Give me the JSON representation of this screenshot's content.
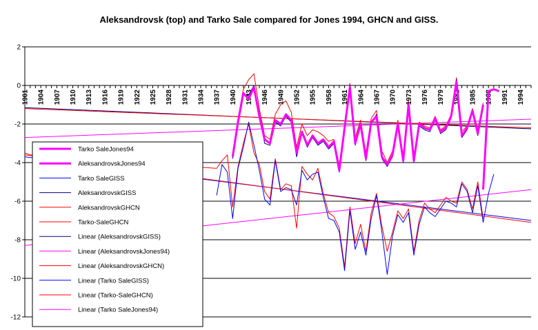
{
  "chart_data": {
    "type": "line",
    "title": "Aleksandrovsk (top) and Tarko Sale compared for Jones 1994, GHCN and GISS.",
    "xlabel": "",
    "ylabel": "",
    "xlim": [
      1901,
      1996
    ],
    "ylim": [
      -12,
      2
    ],
    "yticks": [
      2,
      0,
      -2,
      -4,
      -6,
      -8,
      -10,
      -12
    ],
    "xticks": [
      1901,
      1904,
      1907,
      1910,
      1913,
      1916,
      1919,
      1922,
      1925,
      1928,
      1931,
      1934,
      1937,
      1940,
      1943,
      1946,
      1949,
      1952,
      1955,
      1958,
      1961,
      1964,
      1967,
      1970,
      1973,
      1976,
      1979,
      1982,
      1985,
      1988,
      1991,
      1994
    ],
    "grid": "horizontal",
    "legend_position": "bottom-left",
    "series": [
      {
        "name": "Tarko SaleJones94",
        "color": "#ff00ff",
        "width": 3,
        "x": [
          1987,
          1988,
          1989,
          1990
        ],
        "y": [
          -5.4,
          -0.3,
          -0.2,
          -0.3
        ]
      },
      {
        "name": "AleksandrovskJones94",
        "color": "#ff00ff",
        "width": 3,
        "x": [
          1940,
          1941,
          1942,
          1943,
          1944,
          1945,
          1946,
          1947,
          1948,
          1949,
          1950,
          1951,
          1952,
          1953,
          1954,
          1955,
          1956,
          1957,
          1958,
          1959,
          1960,
          1961,
          1962,
          1963,
          1964,
          1965,
          1966,
          1967,
          1968,
          1969,
          1970,
          1971,
          1972,
          1973,
          1974,
          1975,
          1976,
          1977,
          1978,
          1979,
          1980,
          1981,
          1982,
          1983,
          1984,
          1985,
          1986,
          1987
        ],
        "y": [
          -3.7,
          -1.9,
          -0.4,
          -0.7,
          -0.1,
          -1.6,
          -2.8,
          -3.0,
          -1.8,
          -2.0,
          -1.5,
          -1.8,
          -3.5,
          -2.4,
          -3.1,
          -2.6,
          -3.0,
          -2.8,
          -3.2,
          -2.9,
          -4.4,
          -2.2,
          -0.1,
          -3.0,
          -2.0,
          -3.8,
          -1.9,
          -1.6,
          -3.7,
          -4.1,
          -3.6,
          -2.0,
          -3.9,
          -1.0,
          -3.9,
          -2.0,
          -2.2,
          -2.3,
          -1.7,
          -2.4,
          -2.2,
          -1.6,
          0.2,
          -2.6,
          -2.2,
          -1.3,
          -2.5,
          -1.0
        ]
      },
      {
        "name": "Tarko SaleGISS",
        "color": "#0000ff",
        "width": 1,
        "x": [
          1937,
          1938,
          1939,
          1940,
          1941,
          1942,
          1943,
          1944,
          1945,
          1946,
          1947,
          1948,
          1949,
          1950,
          1951,
          1952,
          1953,
          1954,
          1955,
          1956,
          1957,
          1958,
          1959,
          1960,
          1961,
          1962,
          1963,
          1964,
          1965,
          1966,
          1967,
          1968,
          1969,
          1970,
          1971,
          1972,
          1973,
          1974,
          1975,
          1976,
          1977,
          1978,
          1979,
          1980,
          1981,
          1982,
          1983,
          1984,
          1985,
          1986,
          1987,
          1988,
          1989
        ],
        "y": [
          -5.7,
          -4.1,
          -4.5,
          -6.9,
          -4.3,
          -3.2,
          -1.9,
          -3.1,
          -4.4,
          -5.9,
          -6.2,
          -3.9,
          -5.5,
          -5.3,
          -5.4,
          -6.2,
          -4.4,
          -4.9,
          -4.6,
          -4.5,
          -5.8,
          -6.9,
          -7.0,
          -7.6,
          -9.6,
          -6.5,
          -8.5,
          -7.6,
          -8.8,
          -6.9,
          -5.7,
          -7.6,
          -9.8,
          -7.8,
          -6.7,
          -7.1,
          -6.6,
          -8.8,
          -7.2,
          -6.3,
          -6.6,
          -6.8,
          -6.4,
          -6.0,
          -6.1,
          -6.3,
          -5.1,
          -5.5,
          -6.6,
          -5.2,
          -7.1,
          -5.6,
          -4.6
        ]
      },
      {
        "name": "AleksandrovskGISS",
        "color": "#000080",
        "width": 1,
        "x": [
          1940,
          1941,
          1942,
          1943,
          1944,
          1945,
          1946,
          1947,
          1948,
          1949,
          1950,
          1951,
          1952,
          1953,
          1954,
          1955,
          1956,
          1957,
          1958,
          1959,
          1960,
          1961,
          1962,
          1963,
          1964,
          1965,
          1966,
          1967,
          1968,
          1969,
          1970,
          1971,
          1972,
          1973,
          1974,
          1975,
          1976,
          1977,
          1978,
          1979,
          1980,
          1981,
          1982,
          1983,
          1984,
          1985,
          1986,
          1987
        ],
        "y": [
          -3.8,
          -2.0,
          -0.5,
          -0.5,
          0.0,
          -1.6,
          -3.0,
          -3.1,
          -1.9,
          -2.1,
          -1.6,
          -1.9,
          -3.7,
          -2.5,
          -3.2,
          -2.7,
          -3.1,
          -2.9,
          -3.3,
          -3.0,
          -4.5,
          -2.3,
          0.0,
          -3.1,
          -2.1,
          -3.9,
          -2.0,
          -1.5,
          -3.8,
          -4.2,
          -3.7,
          -2.1,
          -4.0,
          -0.9,
          -4.0,
          -2.1,
          -2.3,
          -2.4,
          -1.8,
          -2.5,
          -2.3,
          -1.7,
          0.3,
          -2.7,
          -2.3,
          -1.4,
          -2.6,
          -1.1
        ]
      },
      {
        "name": "AleksandrovskGHCN",
        "color": "#ff0000",
        "width": 1,
        "x": [
          1940,
          1941,
          1942,
          1943,
          1944,
          1945,
          1946,
          1947,
          1948,
          1949,
          1950,
          1951,
          1952,
          1953,
          1954,
          1955,
          1956,
          1957,
          1958,
          1959,
          1960,
          1961,
          1962,
          1963,
          1964,
          1965,
          1966,
          1967,
          1968,
          1969,
          1970,
          1971,
          1972,
          1973,
          1974,
          1975,
          1976,
          1977,
          1978,
          1979,
          1980,
          1981,
          1982,
          1983,
          1984,
          1985,
          1986,
          1987
        ],
        "y": [
          -3.5,
          -1.7,
          -0.2,
          0.3,
          0.6,
          -1.2,
          -2.6,
          -2.8,
          -1.5,
          -1.0,
          -0.8,
          -1.4,
          -3.2,
          -2.0,
          -2.6,
          -2.3,
          -2.4,
          -2.6,
          -2.9,
          -2.8,
          -4.1,
          -2.0,
          0.1,
          -2.7,
          -1.8,
          -3.5,
          -1.7,
          -1.3,
          -3.4,
          -4.0,
          -3.4,
          -1.8,
          -3.7,
          -0.8,
          -3.7,
          -1.9,
          -2.1,
          -2.2,
          -1.6,
          -2.3,
          -2.1,
          -1.5,
          0.4,
          -2.4,
          -2.1,
          -1.2,
          -2.3,
          -0.9
        ]
      },
      {
        "name": "Tarko-SaleGHCN",
        "color": "#ff0000",
        "width": 1,
        "x": [
          1901,
          1902,
          1937,
          1938,
          1939,
          1940,
          1941,
          1942,
          1943,
          1944,
          1945,
          1946,
          1947,
          1948,
          1949,
          1950,
          1951,
          1952,
          1953,
          1954,
          1955,
          1956,
          1957,
          1958,
          1959,
          1960,
          1961,
          1962,
          1963,
          1964,
          1965,
          1966,
          1967,
          1968,
          1969,
          1970,
          1971,
          1972,
          1973,
          1974,
          1975,
          1976,
          1977,
          1978,
          1979,
          1980,
          1981,
          1982,
          1983,
          1984,
          1985,
          1986,
          1987
        ],
        "y": [
          -3.5,
          -3.6,
          -4.3,
          -3.9,
          -3.6,
          -6.3,
          -4.2,
          -3.0,
          -2.0,
          -3.5,
          -4.1,
          -5.5,
          -5.9,
          -3.8,
          -5.4,
          -5.1,
          -5.2,
          -7.4,
          -4.2,
          -4.6,
          -4.9,
          -4.3,
          -5.6,
          -6.6,
          -6.8,
          -7.4,
          -9.4,
          -6.3,
          -8.2,
          -7.2,
          -8.6,
          -6.6,
          -5.6,
          -7.3,
          -8.6,
          -7.6,
          -6.5,
          -6.9,
          -6.4,
          -8.6,
          -7.0,
          -6.1,
          -6.4,
          -6.6,
          -6.2,
          -5.8,
          -6.0,
          -6.1,
          -5.0,
          -5.4,
          -6.4,
          -5.0,
          -6.9
        ]
      },
      {
        "name": "Linear (AleksandrovskGISS)",
        "color": "#000080",
        "width": 1,
        "x": [
          1901,
          1996
        ],
        "y": [
          -1.15,
          -2.25
        ]
      },
      {
        "name": "Linear (AleksandrovskJones94)",
        "color": "#ff00ff",
        "width": 1,
        "x": [
          1901,
          1996
        ],
        "y": [
          -2.7,
          -1.75
        ]
      },
      {
        "name": "Linear (AleksandrovskGHCN)",
        "color": "#ff0000",
        "width": 1,
        "x": [
          1901,
          1996
        ],
        "y": [
          -1.2,
          -2.2
        ]
      },
      {
        "name": "Linear (Tarko SaleGISS)",
        "color": "#0000ff",
        "width": 1,
        "x": [
          1901,
          1996
        ],
        "y": [
          -3.7,
          -7.0
        ]
      },
      {
        "name": "Linear (Tarko-SaleGHCN)",
        "color": "#ff0000",
        "width": 1,
        "x": [
          1901,
          1996
        ],
        "y": [
          -3.6,
          -7.1
        ]
      },
      {
        "name": "Linear (Tarko SaleJones94)",
        "color": "#ff00ff",
        "width": 1,
        "x": [
          1901,
          1996
        ],
        "y": [
          -8.3,
          -5.4
        ]
      }
    ]
  }
}
